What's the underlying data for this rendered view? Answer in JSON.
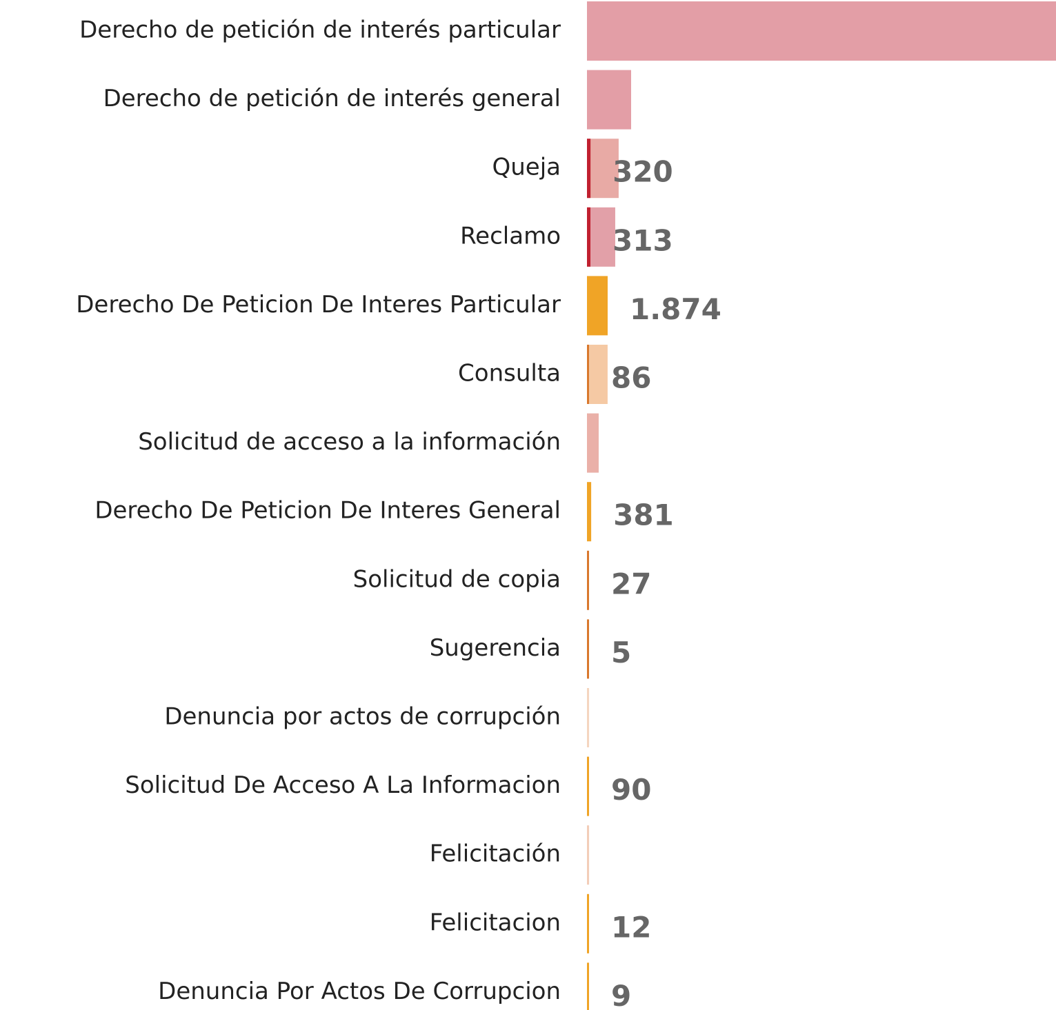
{
  "chart_data": {
    "type": "bar",
    "orientation": "horizontal",
    "categories": [
      "Derecho de petición de interés particular",
      "Derecho de petición de interés general",
      "Queja",
      "Reclamo",
      "Derecho De Peticion De Interes Particular",
      "Consulta",
      "Solicitud de acceso a la información",
      "Derecho De Peticion De Interes General",
      "Solicitud de copia",
      "Sugerencia",
      "Denuncia por actos de corrupción",
      "Solicitud De Acceso A La Informacion",
      "Felicitación",
      "Felicitacion",
      "Denuncia Por Actos De Corrupcion"
    ],
    "series": [
      {
        "colors": [
          "#e39ea6",
          "#e39ea6",
          "#e8aaa5",
          "#e2a0a8",
          null,
          "#f5c9a4",
          "#eab0a8",
          null,
          null,
          null,
          "#f5d5bf",
          null,
          "#f3cdb8",
          null,
          null
        ],
        "values": [
          42500,
          4000,
          2870,
          2560,
          null,
          1870,
          1060,
          null,
          null,
          null,
          190,
          null,
          190,
          null,
          null
        ]
      },
      {
        "colors": [
          null,
          null,
          "#c0202f",
          "#c0202f",
          "#f0a426",
          "#d9782d",
          null,
          "#f0a426",
          "#d9782d",
          "#d9782d",
          null,
          "#f0a426",
          null,
          "#f0a426",
          "#f0a426"
        ],
        "values": [
          null,
          null,
          320,
          313,
          1874,
          86,
          null,
          381,
          27,
          5,
          null,
          90,
          null,
          12,
          9
        ],
        "value_labels": [
          null,
          null,
          "320",
          "313",
          "1.874",
          "86",
          null,
          "381",
          "27",
          "5",
          null,
          "90",
          null,
          "12",
          "9"
        ]
      }
    ],
    "xlim": [
      0,
      42500
    ]
  }
}
